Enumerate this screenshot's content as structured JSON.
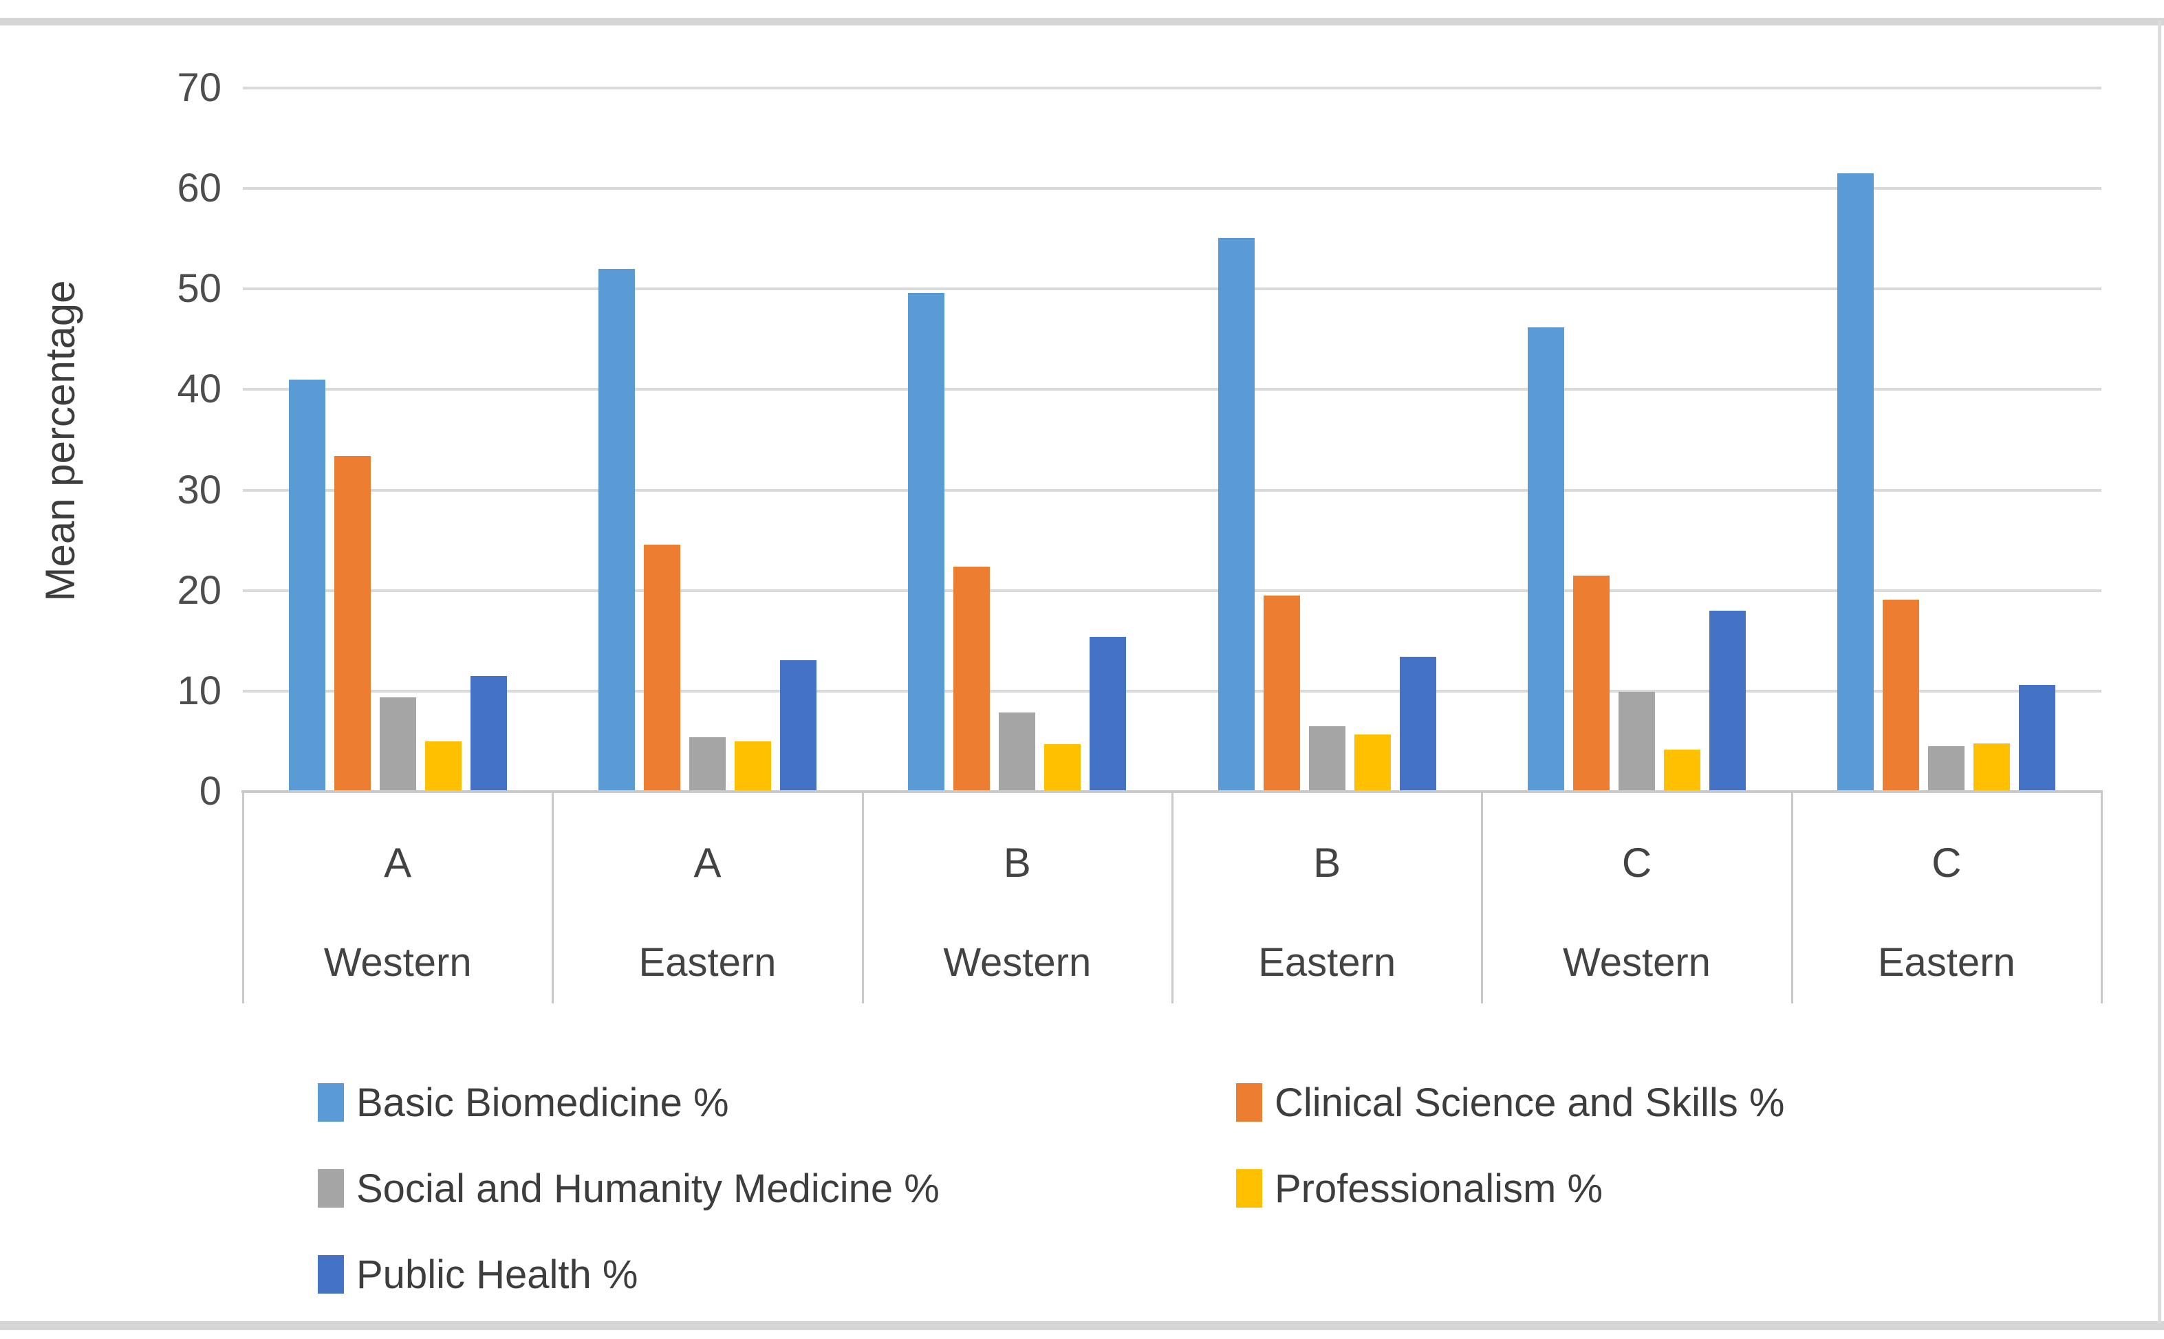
{
  "chart_data": {
    "type": "bar",
    "title": "",
    "xlabel": "",
    "ylabel": "Mean percentage",
    "ylim": [
      0,
      70
    ],
    "yticks": [
      70,
      60,
      50,
      40,
      30,
      20,
      10,
      0
    ],
    "grid": true,
    "legend_position": "bottom",
    "categories": [
      {
        "group": "A",
        "region": "Western"
      },
      {
        "group": "A",
        "region": "Eastern"
      },
      {
        "group": "B",
        "region": "Western"
      },
      {
        "group": "B",
        "region": "Eastern"
      },
      {
        "group": "C",
        "region": "Western"
      },
      {
        "group": "C",
        "region": "Eastern"
      }
    ],
    "series": [
      {
        "name": "Basic Biomedicine %",
        "color": "#5B9BD5",
        "values": [
          41.0,
          52.0,
          49.6,
          55.1,
          46.2,
          61.5
        ]
      },
      {
        "name": "Clinical Science and Skills %",
        "color": "#ED7D31",
        "values": [
          33.4,
          24.6,
          22.4,
          19.5,
          21.5,
          19.1
        ]
      },
      {
        "name": "Social and Humanity Medicine %",
        "color": "#A5A5A5",
        "values": [
          9.4,
          5.4,
          7.9,
          6.5,
          9.9,
          4.5
        ]
      },
      {
        "name": "Professionalism %",
        "color": "#FFC000",
        "values": [
          5.0,
          5.0,
          4.7,
          5.7,
          4.2,
          4.8
        ]
      },
      {
        "name": "Public Health %",
        "color": "#4472C4",
        "values": [
          11.5,
          13.1,
          15.4,
          13.4,
          18.0,
          10.6
        ]
      }
    ],
    "legend_columns": [
      [
        0,
        1
      ],
      [
        2,
        3
      ],
      [
        4
      ]
    ]
  },
  "colors": {
    "gridline": "#d9d9d9",
    "axis_line": "#c9c9c9",
    "tick_text": "#4d4d4d",
    "label_text": "#3d3d3d",
    "chrome_strip": "#d6d6d6",
    "background": "#ffffff"
  }
}
